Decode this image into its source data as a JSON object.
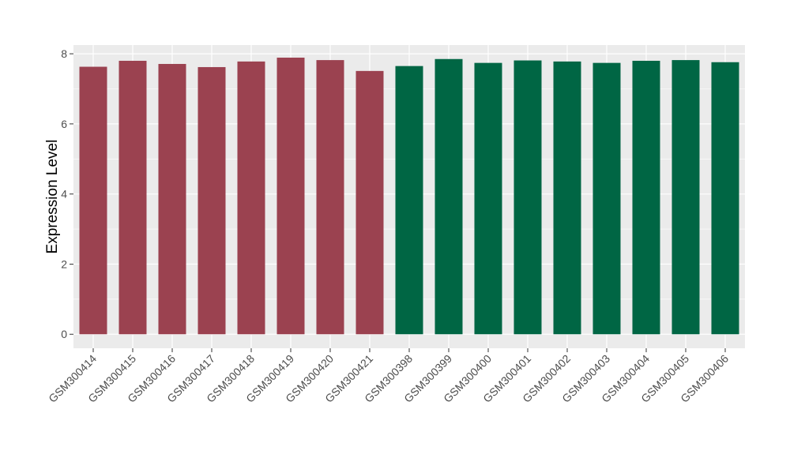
{
  "chart_data": {
    "type": "bar",
    "title": "",
    "xlabel": "",
    "ylabel": "Expression Level",
    "ylim": [
      -0.4,
      8.25
    ],
    "yticks": [
      0,
      2,
      4,
      6,
      8
    ],
    "grid": true,
    "legend": "none",
    "categories": [
      "GSM300414",
      "GSM300415",
      "GSM300416",
      "GSM300417",
      "GSM300418",
      "GSM300419",
      "GSM300420",
      "GSM300421",
      "GSM300398",
      "GSM300399",
      "GSM300400",
      "GSM300401",
      "GSM300402",
      "GSM300403",
      "GSM300404",
      "GSM300405",
      "GSM300406"
    ],
    "values": [
      7.63,
      7.8,
      7.71,
      7.62,
      7.78,
      7.89,
      7.82,
      7.51,
      7.65,
      7.85,
      7.74,
      7.81,
      7.78,
      7.74,
      7.8,
      7.82,
      7.76
    ],
    "groups": [
      1,
      1,
      1,
      1,
      1,
      1,
      1,
      1,
      2,
      2,
      2,
      2,
      2,
      2,
      2,
      2,
      2
    ],
    "colors": {
      "group1": "#9b4250",
      "group2": "#006644",
      "panel_background": "#ebebeb",
      "gridline": "#ffffff"
    }
  }
}
